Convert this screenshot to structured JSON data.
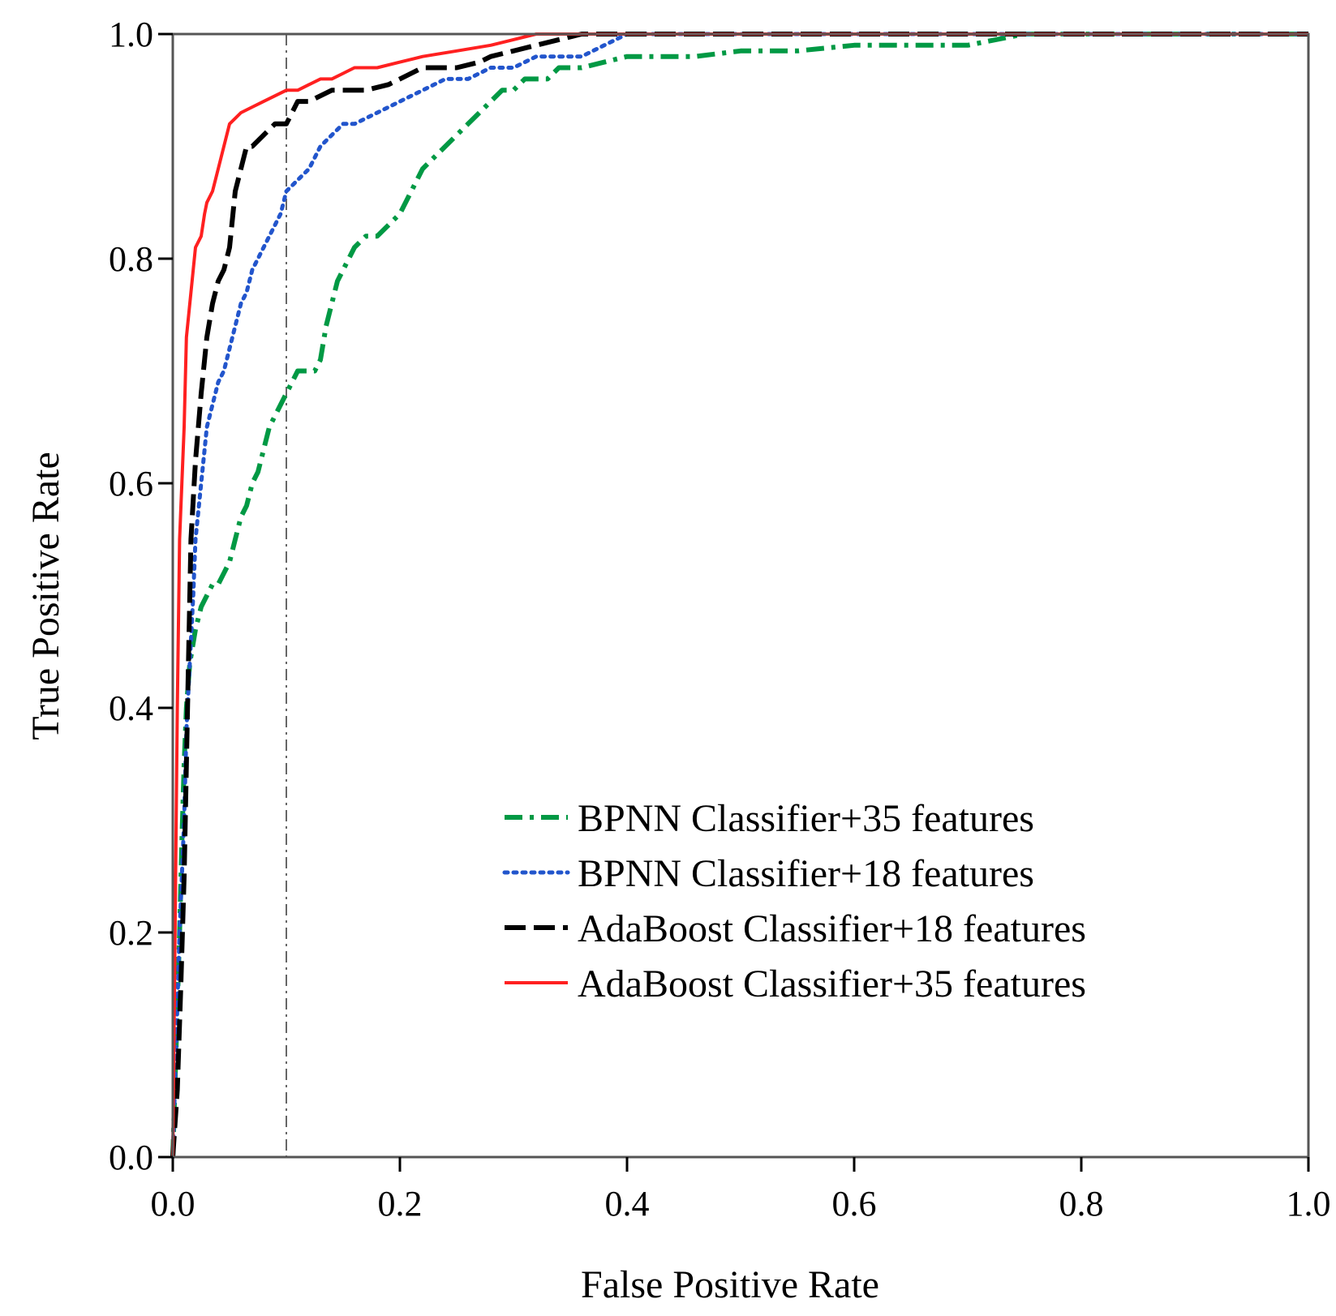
{
  "chart_data": {
    "type": "line",
    "title": "",
    "xlabel": "False Positive Rate",
    "ylabel": "True Positive Rate",
    "xlim": [
      0.0,
      1.0
    ],
    "ylim": [
      0.0,
      1.0
    ],
    "xticks": [
      "0.0",
      "0.2",
      "0.4",
      "0.6",
      "0.8",
      "1.0"
    ],
    "yticks": [
      "0.0",
      "0.2",
      "0.4",
      "0.6",
      "0.8",
      "1.0"
    ],
    "grid": false,
    "legend_position": "bottom-right",
    "reference_line": {
      "orientation": "vertical",
      "x": 0.1,
      "style": "dash-dot",
      "color": "#666666"
    },
    "series": [
      {
        "name": "BPNN Classifier+35 features",
        "color": "#009944",
        "style": "dashdot",
        "x": [
          0.0,
          0.003,
          0.006,
          0.008,
          0.01,
          0.012,
          0.015,
          0.02,
          0.025,
          0.03,
          0.035,
          0.04,
          0.045,
          0.05,
          0.055,
          0.06,
          0.065,
          0.07,
          0.075,
          0.08,
          0.085,
          0.09,
          0.095,
          0.1,
          0.105,
          0.11,
          0.115,
          0.12,
          0.125,
          0.13,
          0.135,
          0.14,
          0.145,
          0.15,
          0.16,
          0.17,
          0.18,
          0.19,
          0.2,
          0.21,
          0.22,
          0.23,
          0.24,
          0.25,
          0.26,
          0.27,
          0.28,
          0.29,
          0.3,
          0.31,
          0.32,
          0.33,
          0.34,
          0.35,
          0.36,
          0.38,
          0.4,
          0.43,
          0.46,
          0.5,
          0.55,
          0.6,
          0.65,
          0.7,
          0.75,
          0.8,
          0.9,
          1.0
        ],
        "y": [
          0.0,
          0.1,
          0.2,
          0.28,
          0.35,
          0.4,
          0.44,
          0.47,
          0.49,
          0.5,
          0.51,
          0.51,
          0.52,
          0.53,
          0.55,
          0.57,
          0.58,
          0.6,
          0.61,
          0.63,
          0.65,
          0.66,
          0.67,
          0.68,
          0.69,
          0.7,
          0.7,
          0.7,
          0.7,
          0.71,
          0.74,
          0.76,
          0.78,
          0.79,
          0.81,
          0.82,
          0.82,
          0.83,
          0.84,
          0.86,
          0.88,
          0.89,
          0.9,
          0.91,
          0.92,
          0.93,
          0.94,
          0.95,
          0.95,
          0.96,
          0.96,
          0.96,
          0.97,
          0.97,
          0.97,
          0.975,
          0.98,
          0.98,
          0.98,
          0.985,
          0.985,
          0.99,
          0.99,
          0.99,
          1.0,
          1.0,
          1.0,
          1.0
        ]
      },
      {
        "name": "BPNN Classifier+18 features",
        "color": "#2255cc",
        "style": "dotted",
        "x": [
          0.0,
          0.003,
          0.006,
          0.01,
          0.012,
          0.015,
          0.018,
          0.02,
          0.023,
          0.025,
          0.028,
          0.03,
          0.035,
          0.04,
          0.045,
          0.05,
          0.055,
          0.06,
          0.065,
          0.07,
          0.075,
          0.08,
          0.085,
          0.09,
          0.095,
          0.1,
          0.11,
          0.12,
          0.13,
          0.14,
          0.15,
          0.16,
          0.18,
          0.2,
          0.22,
          0.24,
          0.26,
          0.28,
          0.3,
          0.32,
          0.34,
          0.36,
          0.38,
          0.4,
          0.45,
          0.5,
          0.6,
          0.7,
          0.8,
          1.0
        ],
        "y": [
          0.0,
          0.1,
          0.2,
          0.3,
          0.38,
          0.44,
          0.5,
          0.55,
          0.58,
          0.6,
          0.63,
          0.65,
          0.67,
          0.69,
          0.7,
          0.72,
          0.74,
          0.76,
          0.77,
          0.79,
          0.8,
          0.81,
          0.82,
          0.83,
          0.84,
          0.86,
          0.87,
          0.88,
          0.9,
          0.91,
          0.92,
          0.92,
          0.93,
          0.94,
          0.95,
          0.96,
          0.96,
          0.97,
          0.97,
          0.98,
          0.98,
          0.98,
          0.99,
          1.0,
          1.0,
          1.0,
          1.0,
          1.0,
          1.0,
          1.0
        ]
      },
      {
        "name": "AdaBoost Classifier+18 features",
        "color": "#000000",
        "style": "dashed",
        "x": [
          0.0,
          0.004,
          0.007,
          0.01,
          0.013,
          0.016,
          0.02,
          0.025,
          0.03,
          0.035,
          0.04,
          0.045,
          0.05,
          0.055,
          0.06,
          0.065,
          0.07,
          0.08,
          0.09,
          0.1,
          0.105,
          0.11,
          0.12,
          0.13,
          0.14,
          0.15,
          0.17,
          0.19,
          0.2,
          0.22,
          0.25,
          0.27,
          0.28,
          0.3,
          0.32,
          0.34,
          0.36,
          0.4,
          0.5,
          0.6,
          0.7,
          0.8,
          0.9,
          1.0
        ],
        "y": [
          0.0,
          0.06,
          0.15,
          0.25,
          0.4,
          0.55,
          0.62,
          0.68,
          0.73,
          0.76,
          0.78,
          0.79,
          0.81,
          0.86,
          0.88,
          0.9,
          0.9,
          0.91,
          0.92,
          0.92,
          0.93,
          0.94,
          0.94,
          0.945,
          0.95,
          0.95,
          0.95,
          0.955,
          0.96,
          0.97,
          0.97,
          0.975,
          0.98,
          0.985,
          0.99,
          0.995,
          1.0,
          1.0,
          1.0,
          1.0,
          1.0,
          1.0,
          1.0,
          1.0
        ]
      },
      {
        "name": "AdaBoost Classifier+35 features",
        "color": "#ff2020",
        "style": "solid",
        "x": [
          0.0,
          0.002,
          0.004,
          0.006,
          0.008,
          0.01,
          0.012,
          0.015,
          0.018,
          0.02,
          0.025,
          0.028,
          0.03,
          0.035,
          0.04,
          0.045,
          0.05,
          0.055,
          0.06,
          0.07,
          0.08,
          0.09,
          0.1,
          0.11,
          0.12,
          0.13,
          0.14,
          0.15,
          0.16,
          0.18,
          0.2,
          0.22,
          0.25,
          0.28,
          0.3,
          0.32,
          0.35,
          0.4,
          0.5,
          0.6,
          0.8,
          1.0
        ],
        "y": [
          0.0,
          0.2,
          0.4,
          0.55,
          0.6,
          0.65,
          0.73,
          0.76,
          0.79,
          0.81,
          0.82,
          0.84,
          0.85,
          0.86,
          0.88,
          0.9,
          0.92,
          0.925,
          0.93,
          0.935,
          0.94,
          0.945,
          0.95,
          0.95,
          0.955,
          0.96,
          0.96,
          0.965,
          0.97,
          0.97,
          0.975,
          0.98,
          0.985,
          0.99,
          0.995,
          1.0,
          1.0,
          1.0,
          1.0,
          1.0,
          1.0,
          1.0
        ]
      }
    ]
  }
}
